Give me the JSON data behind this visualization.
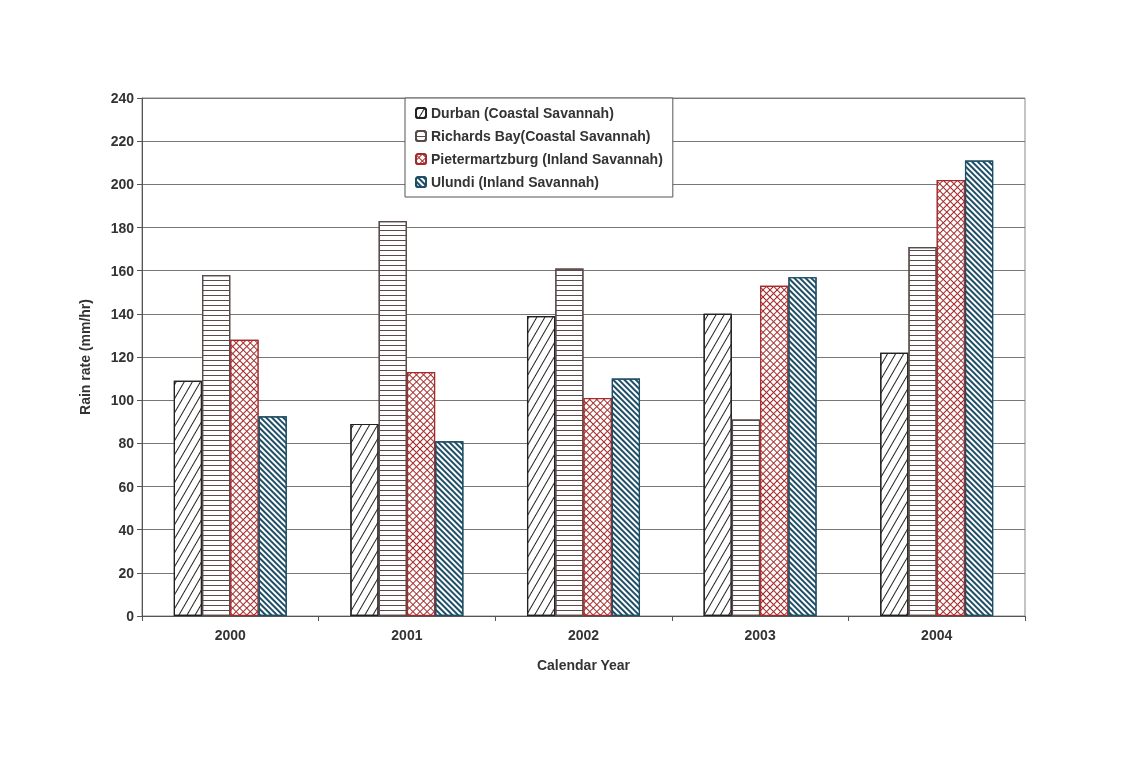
{
  "chart_data": {
    "type": "bar",
    "xlabel": "Calendar Year",
    "ylabel": "Rain rate (mm/hr)",
    "categories": [
      "2000",
      "2001",
      "2002",
      "2003",
      "2004"
    ],
    "series": [
      {
        "name": "Durban (Coastal Savannah)",
        "color": "#222222",
        "values": [
          109,
          89,
          139,
          140,
          122
        ]
      },
      {
        "name": "Richards Bay(Coastal Savannah)",
        "color": "#5a4a4a",
        "values": [
          158,
          183,
          161,
          91,
          171
        ]
      },
      {
        "name": "Pietermartzburg (Inland Savannah)",
        "color": "#a52a2a",
        "values": [
          128,
          113,
          101,
          153,
          202
        ]
      },
      {
        "name": "Ulundi (Inland Savannah)",
        "color": "#1f4f66",
        "values": [
          92.5,
          81,
          110,
          157,
          211
        ]
      }
    ],
    "ylim": [
      0,
      240
    ],
    "yticks": [
      0,
      20,
      40,
      60,
      80,
      100,
      120,
      140,
      160,
      180,
      200,
      220,
      240
    ],
    "grid": "y",
    "legend": "top"
  }
}
